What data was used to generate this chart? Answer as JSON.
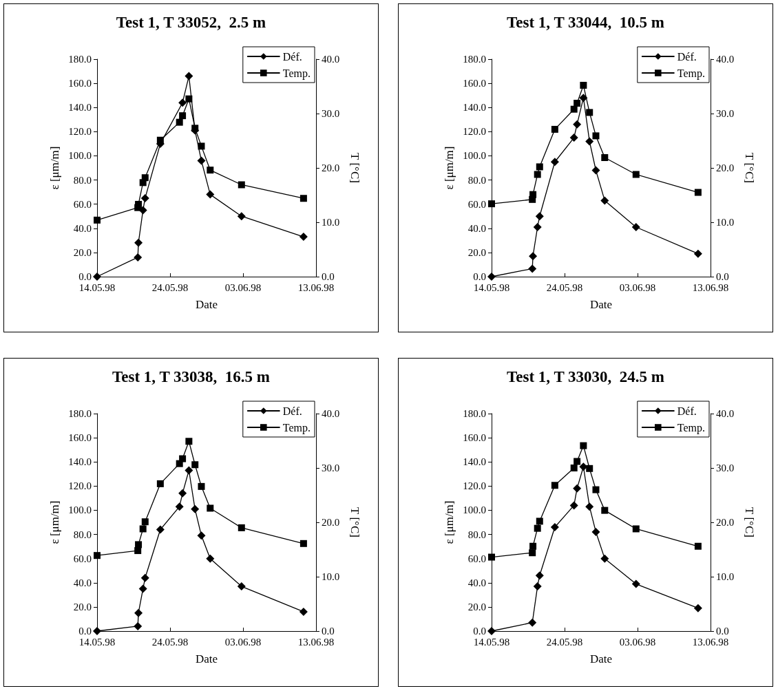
{
  "chart_data": [
    {
      "type": "line",
      "title": "Test 1, T 33052,  2.5 m",
      "xlabel": "Date",
      "ylabel": "ε [μm/m]",
      "y2label": "T [°C]",
      "x": [
        "1998-05-14T00:00",
        "1998-05-19T14:00",
        "1998-05-19T16:00",
        "1998-05-20T07:00",
        "1998-05-20T14:00",
        "1998-05-22T16:00",
        "1998-05-25T07:00",
        "1998-05-25T17:00",
        "1998-05-26T14:00",
        "1998-05-27T10:00",
        "1998-05-28T07:00",
        "1998-05-29T12:00",
        "1998-06-02T19:00",
        "1998-06-11T07:00"
      ],
      "series": [
        {
          "name": "Déf.",
          "color": "#000000",
          "marker": "diamond",
          "x": [
            "1998-05-14T00:00",
            "1998-05-19T14:00",
            "1998-05-19T16:00",
            "1998-05-20T07:00",
            "1998-05-20T14:00",
            "1998-05-22T16:00",
            "1998-05-25T17:00",
            "1998-05-26T14:00",
            "1998-05-27T10:00",
            "1998-05-28T07:00",
            "1998-05-29T12:00",
            "1998-06-02T19:00",
            "1998-06-11T07:00"
          ],
          "values": [
            0,
            16,
            28,
            55,
            65,
            110,
            144,
            166,
            121,
            96,
            68,
            50,
            33
          ]
        },
        {
          "name": "Temp.",
          "color": "#000000",
          "marker": "square",
          "axis": "y2",
          "values": [
            10.4,
            12.7,
            13.3,
            17.3,
            18.2,
            25.1,
            28.4,
            29.6,
            32.7,
            27.3,
            24.0,
            19.6,
            16.9,
            14.4
          ]
        }
      ],
      "xlim": [
        "1998-05-14",
        "1998-06-13"
      ],
      "xticks": [
        {
          "value": "1998-05-14",
          "label": "14.05.98"
        },
        {
          "value": "1998-05-24",
          "label": "24.05.98"
        },
        {
          "value": "1998-06-03",
          "label": "03.06.98"
        },
        {
          "value": "1998-06-13",
          "label": "13.06.98"
        }
      ],
      "ylim": [
        0,
        180
      ],
      "yticks": [
        {
          "value": 0,
          "label": "0.0"
        },
        {
          "value": 20,
          "label": "20.0"
        },
        {
          "value": 40,
          "label": "40.0"
        },
        {
          "value": 60,
          "label": "60.0"
        },
        {
          "value": 80,
          "label": "80.0"
        },
        {
          "value": 100,
          "label": "100.0"
        },
        {
          "value": 120,
          "label": "120.0"
        },
        {
          "value": 140,
          "label": "140.0"
        },
        {
          "value": 160,
          "label": "160.0"
        },
        {
          "value": 180,
          "label": "180.0"
        }
      ],
      "y2lim": [
        0,
        40
      ],
      "y2ticks": [
        {
          "value": 0,
          "label": "0.0"
        },
        {
          "value": 10,
          "label": "10.0"
        },
        {
          "value": 20,
          "label": "20.0"
        },
        {
          "value": 30,
          "label": "30.0"
        },
        {
          "value": 40,
          "label": "40.0"
        }
      ],
      "legend": "top right",
      "grid": false,
      "line_style": "solid"
    },
    {
      "type": "line",
      "title": "Test 1, T 33044,  10.5 m",
      "xlabel": "Date",
      "ylabel": "ε [μm/m]",
      "y2label": "T [°C]",
      "x": [
        "1998-05-14T00:00",
        "1998-05-19T14:00",
        "1998-05-19T16:00",
        "1998-05-20T07:00",
        "1998-05-20T14:00",
        "1998-05-22T16:00",
        "1998-05-25T07:00",
        "1998-05-25T17:00",
        "1998-05-26T14:00",
        "1998-05-27T10:00",
        "1998-05-28T07:00",
        "1998-05-29T12:00",
        "1998-06-02T19:00",
        "1998-06-11T07:00"
      ],
      "series": [
        {
          "name": "Déf.",
          "color": "#000000",
          "marker": "diamond",
          "values": [
            0,
            6.6,
            17,
            41,
            50,
            95,
            115,
            126,
            148,
            112,
            88,
            63,
            41,
            19
          ]
        },
        {
          "name": "Temp.",
          "color": "#000000",
          "marker": "square",
          "axis": "y2",
          "values": [
            13.4,
            14.2,
            15.1,
            18.8,
            20.2,
            27.1,
            30.8,
            31.9,
            35.2,
            30.2,
            25.9,
            21.9,
            18.8,
            15.5
          ]
        }
      ],
      "xlim": [
        "1998-05-14",
        "1998-06-13"
      ],
      "xticks": [
        {
          "value": "1998-05-14",
          "label": "14.05.98"
        },
        {
          "value": "1998-05-24",
          "label": "24.05.98"
        },
        {
          "value": "1998-06-03",
          "label": "03.06.98"
        },
        {
          "value": "1998-06-13",
          "label": "13.06.98"
        }
      ],
      "ylim": [
        0,
        180
      ],
      "yticks": [
        {
          "value": 0,
          "label": "0.0"
        },
        {
          "value": 20,
          "label": "20.0"
        },
        {
          "value": 40,
          "label": "40.0"
        },
        {
          "value": 60,
          "label": "60.0"
        },
        {
          "value": 80,
          "label": "80.0"
        },
        {
          "value": 100,
          "label": "100.0"
        },
        {
          "value": 120,
          "label": "120.0"
        },
        {
          "value": 140,
          "label": "140.0"
        },
        {
          "value": 160,
          "label": "160.0"
        },
        {
          "value": 180,
          "label": "180.0"
        }
      ],
      "y2lim": [
        0,
        40
      ],
      "y2ticks": [
        {
          "value": 0,
          "label": "0.0"
        },
        {
          "value": 10,
          "label": "10.0"
        },
        {
          "value": 20,
          "label": "20.0"
        },
        {
          "value": 30,
          "label": "30.0"
        },
        {
          "value": 40,
          "label": "40.0"
        }
      ],
      "legend": "top right",
      "grid": false,
      "line_style": "solid"
    },
    {
      "type": "line",
      "title": "Test 1, T 33038,  16.5 m",
      "xlabel": "Date",
      "ylabel": "ε [μm/m]",
      "y2label": "T [°C]",
      "x": [
        "1998-05-14T00:00",
        "1998-05-19T14:00",
        "1998-05-19T16:00",
        "1998-05-20T07:00",
        "1998-05-20T14:00",
        "1998-05-22T16:00",
        "1998-05-25T07:00",
        "1998-05-25T17:00",
        "1998-05-26T14:00",
        "1998-05-27T10:00",
        "1998-05-28T07:00",
        "1998-05-29T12:00",
        "1998-06-02T19:00",
        "1998-06-11T07:00"
      ],
      "series": [
        {
          "name": "Déf.",
          "color": "#000000",
          "marker": "diamond",
          "values": [
            0,
            4,
            15,
            35,
            44,
            84,
            103,
            114,
            133,
            101,
            79,
            60,
            37,
            16
          ]
        },
        {
          "name": "Temp.",
          "color": "#000000",
          "marker": "square",
          "axis": "y2",
          "values": [
            13.9,
            14.8,
            15.9,
            18.8,
            20.1,
            27.1,
            30.8,
            31.7,
            34.9,
            30.6,
            26.6,
            22.6,
            19.0,
            16.1
          ]
        }
      ],
      "xlim": [
        "1998-05-14",
        "1998-06-13"
      ],
      "xticks": [
        {
          "value": "1998-05-14",
          "label": "14.05.98"
        },
        {
          "value": "1998-05-24",
          "label": "24.05.98"
        },
        {
          "value": "1998-06-03",
          "label": "03.06.98"
        },
        {
          "value": "1998-06-13",
          "label": "13.06.98"
        }
      ],
      "ylim": [
        0,
        180
      ],
      "yticks": [
        {
          "value": 0,
          "label": "0.0"
        },
        {
          "value": 20,
          "label": "20.0"
        },
        {
          "value": 40,
          "label": "40.0"
        },
        {
          "value": 60,
          "label": "60.0"
        },
        {
          "value": 80,
          "label": "80.0"
        },
        {
          "value": 100,
          "label": "100.0"
        },
        {
          "value": 120,
          "label": "120.0"
        },
        {
          "value": 140,
          "label": "140.0"
        },
        {
          "value": 160,
          "label": "160.0"
        },
        {
          "value": 180,
          "label": "180.0"
        }
      ],
      "y2lim": [
        0,
        40
      ],
      "y2ticks": [
        {
          "value": 0,
          "label": "0.0"
        },
        {
          "value": 10,
          "label": "10.0"
        },
        {
          "value": 20,
          "label": "20.0"
        },
        {
          "value": 30,
          "label": "30.0"
        },
        {
          "value": 40,
          "label": "40.0"
        }
      ],
      "legend": "top right",
      "grid": false,
      "line_style": "solid"
    },
    {
      "type": "line",
      "title": "Test 1, T 33030,  24.5 m",
      "xlabel": "Date",
      "ylabel": "ε [μm/m]",
      "y2label": "T [°C]",
      "x": [
        "1998-05-14T00:00",
        "1998-05-19T14:00",
        "1998-05-19T16:00",
        "1998-05-20T07:00",
        "1998-05-20T14:00",
        "1998-05-22T16:00",
        "1998-05-25T07:00",
        "1998-05-25T17:00",
        "1998-05-26T14:00",
        "1998-05-27T10:00",
        "1998-05-28T07:00",
        "1998-05-29T12:00",
        "1998-06-02T19:00",
        "1998-06-11T07:00"
      ],
      "series": [
        {
          "name": "Déf.",
          "color": "#000000",
          "marker": "diamond",
          "x": [
            "1998-05-14T00:00",
            "1998-05-19T14:00",
            "1998-05-20T07:00",
            "1998-05-20T14:00",
            "1998-05-22T16:00",
            "1998-05-25T07:00",
            "1998-05-25T17:00",
            "1998-05-26T14:00",
            "1998-05-27T10:00",
            "1998-05-28T07:00",
            "1998-05-29T12:00",
            "1998-06-02T19:00",
            "1998-06-11T07:00"
          ],
          "values": [
            0,
            7,
            37,
            46,
            86,
            104,
            118,
            136,
            103,
            82,
            60,
            39,
            19
          ]
        },
        {
          "name": "Temp.",
          "color": "#000000",
          "marker": "square",
          "axis": "y2",
          "values": [
            13.6,
            14.4,
            15.6,
            18.9,
            20.2,
            26.8,
            30.0,
            31.2,
            34.1,
            29.9,
            26.0,
            22.2,
            18.8,
            15.6
          ]
        }
      ],
      "xlim": [
        "1998-05-14",
        "1998-06-13"
      ],
      "xticks": [
        {
          "value": "1998-05-14",
          "label": "14.05.98"
        },
        {
          "value": "1998-05-24",
          "label": "24.05.98"
        },
        {
          "value": "1998-06-03",
          "label": "03.06.98"
        },
        {
          "value": "1998-06-13",
          "label": "13.06.98"
        }
      ],
      "ylim": [
        0,
        180
      ],
      "yticks": [
        {
          "value": 0,
          "label": "0.0"
        },
        {
          "value": 20,
          "label": "20.0"
        },
        {
          "value": 40,
          "label": "40.0"
        },
        {
          "value": 60,
          "label": "60.0"
        },
        {
          "value": 80,
          "label": "80.0"
        },
        {
          "value": 100,
          "label": "100.0"
        },
        {
          "value": 120,
          "label": "120.0"
        },
        {
          "value": 140,
          "label": "140.0"
        },
        {
          "value": 160,
          "label": "160.0"
        },
        {
          "value": 180,
          "label": "180.0"
        }
      ],
      "y2lim": [
        0,
        40
      ],
      "y2ticks": [
        {
          "value": 0,
          "label": "0.0"
        },
        {
          "value": 10,
          "label": "10.0"
        },
        {
          "value": 20,
          "label": "20.0"
        },
        {
          "value": 30,
          "label": "30.0"
        },
        {
          "value": 40,
          "label": "40.0"
        }
      ],
      "legend": "top right",
      "grid": false,
      "line_style": "solid"
    }
  ]
}
